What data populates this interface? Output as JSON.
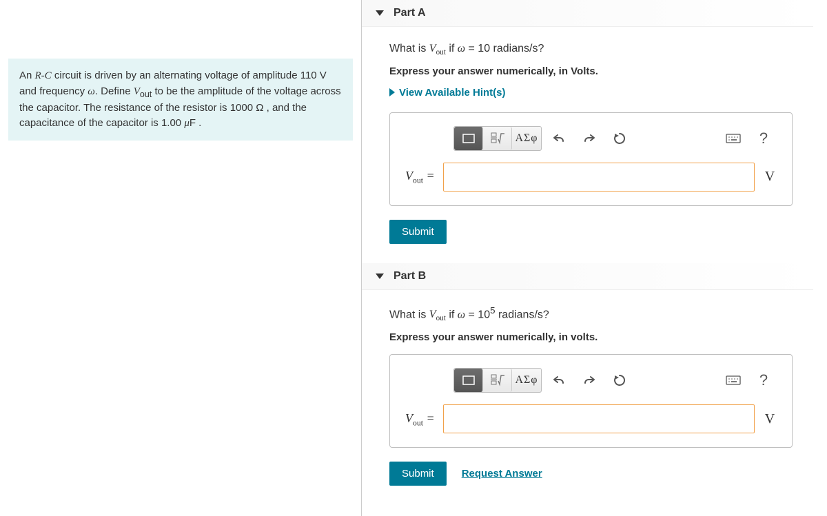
{
  "left": {
    "scenario_html": "An <i>R-C</i> circuit is driven by an alternating voltage of amplitude 110 V and frequency <i>ω</i>. Define <i>V</i><sub>out</sub> to be the amplitude of the voltage across the capacitor. The resistance of the resistor is 1000 Ω , and the capacitance of the capacitor is 1.00 <i>μ</i>F ."
  },
  "parts": {
    "a": {
      "title": "Part A",
      "question_html": "What is <span class='math'>V<sub>out</sub></span> if <span class='math'>ω</span> = 10 radians/s?",
      "instruction": "Express your answer numerically, in Volts.",
      "hints_label": "View Available Hint(s)",
      "answer_label_html": "V<sub>out</sub> =",
      "unit": "V",
      "submit_label": "Submit",
      "show_request": false,
      "request_label": "Request Answer",
      "toolbar": {
        "greek": "ΑΣφ"
      }
    },
    "b": {
      "title": "Part B",
      "question_html": "What is <span class='math'>V<sub>out</sub></span> if <span class='math'>ω</span> = 10<sup>5</sup> radians/s?",
      "instruction": "Express your answer numerically, in volts.",
      "answer_label_html": "V<sub>out</sub> =",
      "unit": "V",
      "submit_label": "Submit",
      "show_request": true,
      "request_label": "Request Answer",
      "toolbar": {
        "greek": "ΑΣφ"
      }
    }
  },
  "colors": {
    "accent": "#007a96",
    "scenario_bg": "#e4f4f5",
    "input_border": "#f1a14a"
  }
}
